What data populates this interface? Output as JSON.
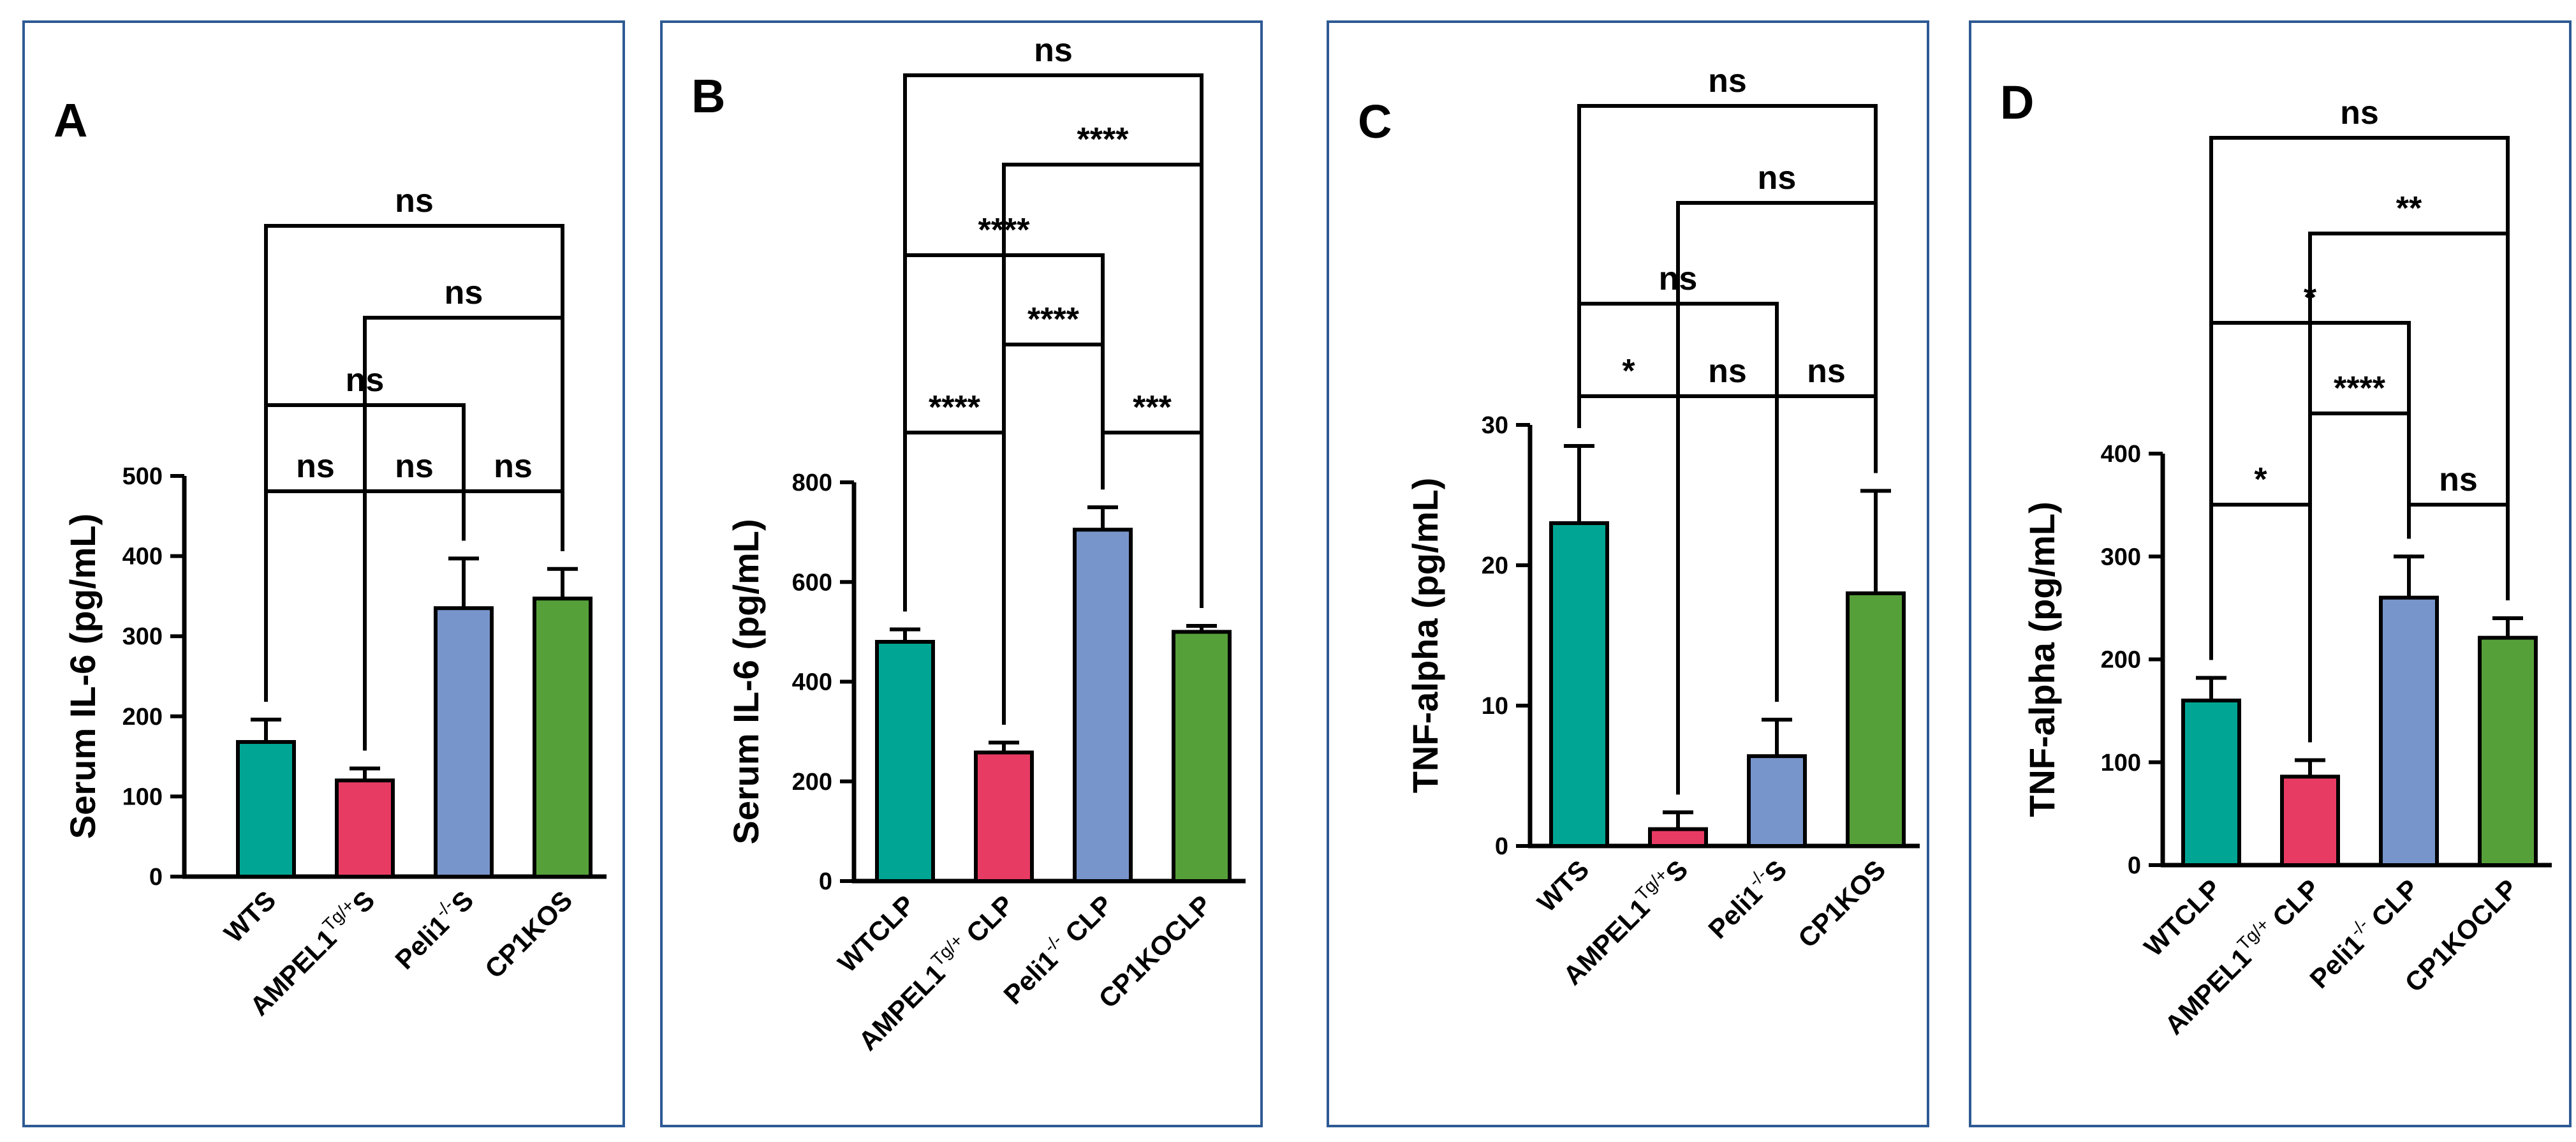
{
  "chart_data": [
    {
      "panel": "A",
      "type": "bar",
      "ylabel": "Serum IL-6 (pg/mL)",
      "ylim": [
        0,
        500
      ],
      "yticks": [
        0,
        100,
        200,
        300,
        400,
        500
      ],
      "categories": [
        {
          "main": "WTS",
          "sup": "",
          "tail": ""
        },
        {
          "main": "AMPEL1",
          "sup": "Tg/+",
          "tail": "S"
        },
        {
          "main": "Peli1",
          "sup": "-/-",
          "tail": "S"
        },
        {
          "main": "CP1KOS",
          "sup": "",
          "tail": ""
        }
      ],
      "values": [
        168,
        120,
        335,
        347
      ],
      "errors": [
        28,
        15,
        62,
        37
      ],
      "colors": [
        "#00a693",
        "#e83b63",
        "#7895cb",
        "#56a03a"
      ],
      "comparisons": [
        {
          "a": 0,
          "b": 3,
          "label": "ns"
        },
        {
          "a": 1,
          "b": 3,
          "label": "ns"
        },
        {
          "a": 0,
          "b": 2,
          "label": "ns"
        },
        {
          "a": 0,
          "b": 1,
          "label": "ns"
        },
        {
          "a": 1,
          "b": 2,
          "label": "ns"
        },
        {
          "a": 2,
          "b": 3,
          "label": "ns"
        }
      ]
    },
    {
      "panel": "B",
      "type": "bar",
      "ylabel": "Serum IL-6 (pg/mL)",
      "ylim": [
        0,
        800
      ],
      "yticks": [
        0,
        200,
        400,
        600,
        800
      ],
      "categories": [
        {
          "main": "WTCLP",
          "sup": "",
          "tail": ""
        },
        {
          "main": "AMPEL1",
          "sup": "Tg/+",
          "tail": " CLP"
        },
        {
          "main": "Peli1",
          "sup": "-/-",
          "tail": " CLP"
        },
        {
          "main": "CP1KOCLP",
          "sup": "",
          "tail": ""
        }
      ],
      "values": [
        480,
        258,
        705,
        500
      ],
      "errors": [
        25,
        20,
        45,
        12
      ],
      "colors": [
        "#00a693",
        "#e83b63",
        "#7895cb",
        "#56a03a"
      ],
      "comparisons": [
        {
          "a": 0,
          "b": 3,
          "label": "ns"
        },
        {
          "a": 1,
          "b": 3,
          "label": "****"
        },
        {
          "a": 0,
          "b": 2,
          "label": "****"
        },
        {
          "a": 1,
          "b": 2,
          "label": "****"
        },
        {
          "a": 0,
          "b": 1,
          "label": "****"
        },
        {
          "a": 2,
          "b": 3,
          "label": "***"
        }
      ]
    },
    {
      "panel": "C",
      "type": "bar",
      "ylabel": "TNF-alpha (pg/mL)",
      "ylim": [
        0,
        30
      ],
      "yticks": [
        0,
        10,
        20,
        30
      ],
      "categories": [
        {
          "main": "WTS",
          "sup": "",
          "tail": ""
        },
        {
          "main": "AMPEL1",
          "sup": "Tg/+",
          "tail": "S"
        },
        {
          "main": "Peli1",
          "sup": "-/-",
          "tail": "S"
        },
        {
          "main": "CP1KOS",
          "sup": "",
          "tail": ""
        }
      ],
      "values": [
        23.0,
        1.2,
        6.4,
        18.0
      ],
      "errors": [
        5.5,
        1.2,
        2.6,
        7.3
      ],
      "colors": [
        "#00a693",
        "#e83b63",
        "#7895cb",
        "#56a03a"
      ],
      "comparisons": [
        {
          "a": 0,
          "b": 3,
          "label": "ns"
        },
        {
          "a": 1,
          "b": 3,
          "label": "ns"
        },
        {
          "a": 0,
          "b": 2,
          "label": "ns"
        },
        {
          "a": 0,
          "b": 1,
          "label": "*"
        },
        {
          "a": 1,
          "b": 2,
          "label": "ns"
        },
        {
          "a": 2,
          "b": 3,
          "label": "ns"
        }
      ]
    },
    {
      "panel": "D",
      "type": "bar",
      "ylabel": "TNF-alpha (pg/mL)",
      "ylim": [
        0,
        400
      ],
      "yticks": [
        0,
        100,
        200,
        300,
        400
      ],
      "categories": [
        {
          "main": "WTCLP",
          "sup": "",
          "tail": ""
        },
        {
          "main": "AMPEL1",
          "sup": "Tg/+",
          "tail": " CLP"
        },
        {
          "main": "Peli1",
          "sup": "-/-",
          "tail": " CLP"
        },
        {
          "main": "CP1KOCLP",
          "sup": "",
          "tail": ""
        }
      ],
      "values": [
        160,
        86,
        260,
        221
      ],
      "errors": [
        22,
        16,
        40,
        19
      ],
      "colors": [
        "#00a693",
        "#e83b63",
        "#7895cb",
        "#56a03a"
      ],
      "comparisons": [
        {
          "a": 0,
          "b": 3,
          "label": "ns"
        },
        {
          "a": 1,
          "b": 3,
          "label": "**"
        },
        {
          "a": 0,
          "b": 2,
          "label": "*"
        },
        {
          "a": 1,
          "b": 2,
          "label": "****"
        },
        {
          "a": 0,
          "b": 1,
          "label": "*"
        },
        {
          "a": 2,
          "b": 3,
          "label": "ns"
        }
      ]
    }
  ]
}
